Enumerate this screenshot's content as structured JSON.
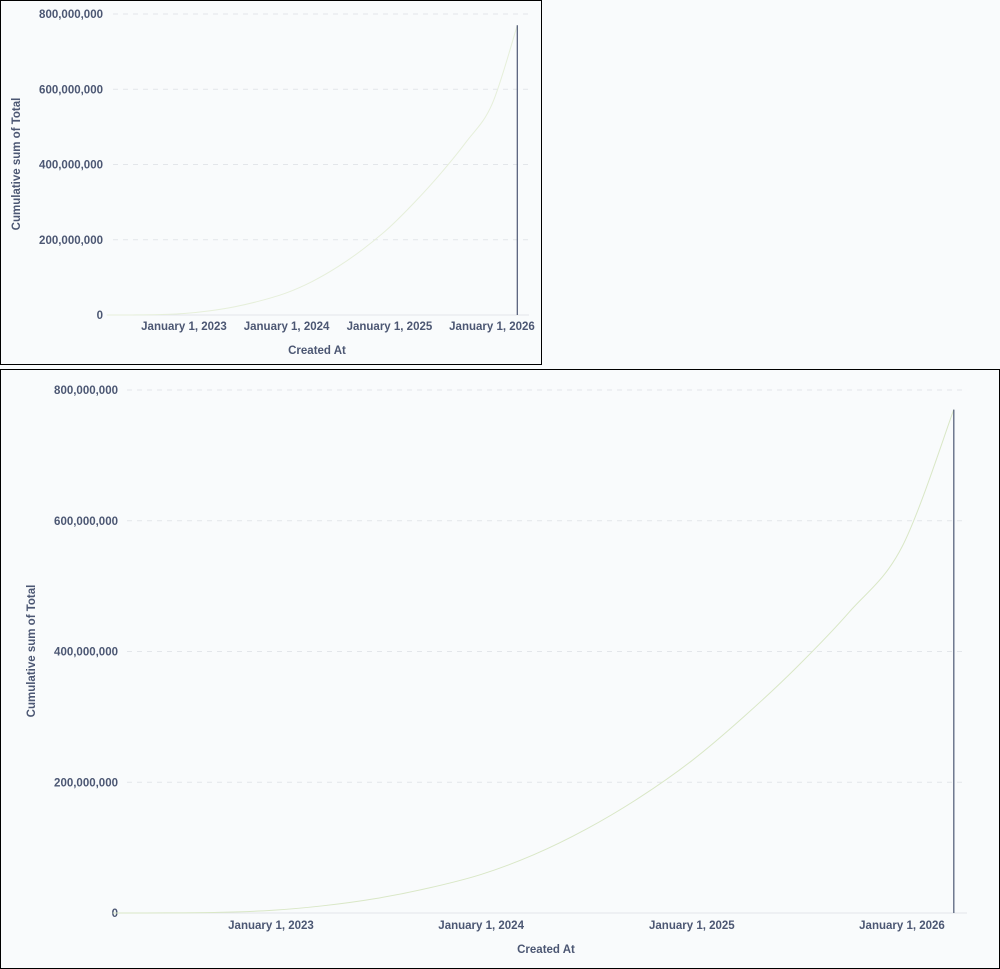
{
  "colors": {
    "background": "#f9fbfc",
    "text": "#4c5773",
    "grid": "#e3e6ea",
    "line": "#d9e7c6",
    "drop_line": "#4c5773"
  },
  "chart_data": [
    {
      "type": "line",
      "xlabel": "Created At",
      "ylabel": "Cumulative sum of Total",
      "ylim": [
        0,
        800000000
      ],
      "y_ticks": [
        0,
        200000000,
        400000000,
        600000000,
        800000000
      ],
      "y_tick_labels": [
        "0",
        "200,000,000",
        "400,000,000",
        "600,000,000",
        "800,000,000"
      ],
      "x_tick_labels": [
        "January 1, 2023",
        "January 1, 2024",
        "January 1, 2025",
        "January 1, 2026"
      ],
      "x": [
        "2022-04-01",
        "2022-07-01",
        "2022-10-01",
        "2023-01-01",
        "2023-04-01",
        "2023-07-01",
        "2023-10-01",
        "2024-01-01",
        "2024-04-01",
        "2024-07-01",
        "2024-10-01",
        "2025-01-01",
        "2025-04-01",
        "2025-07-01",
        "2025-10-01",
        "2026-01-01",
        "2026-04-01"
      ],
      "values": [
        0,
        150000,
        1000000,
        4000000,
        11000000,
        22000000,
        38000000,
        59000000,
        89000000,
        128000000,
        176000000,
        233000000,
        300000000,
        375000000,
        460000000,
        560000000,
        770000000
      ],
      "grid": true,
      "legend": "none"
    },
    {
      "type": "line",
      "xlabel": "Created At",
      "ylabel": "Cumulative sum of Total",
      "ylim": [
        0,
        800000000
      ],
      "y_ticks": [
        0,
        200000000,
        400000000,
        600000000,
        800000000
      ],
      "y_tick_labels": [
        "0",
        "200,000,000",
        "400,000,000",
        "600,000,000",
        "800,000,000"
      ],
      "x_tick_labels": [
        "January 1, 2023",
        "January 1, 2024",
        "January 1, 2025",
        "January 1, 2026"
      ],
      "x": [
        "2022-04-01",
        "2022-07-01",
        "2022-10-01",
        "2023-01-01",
        "2023-04-01",
        "2023-07-01",
        "2023-10-01",
        "2024-01-01",
        "2024-04-01",
        "2024-07-01",
        "2024-10-01",
        "2025-01-01",
        "2025-04-01",
        "2025-07-01",
        "2025-10-01",
        "2026-01-01",
        "2026-04-01"
      ],
      "values": [
        0,
        150000,
        1000000,
        4000000,
        11000000,
        22000000,
        38000000,
        59000000,
        89000000,
        128000000,
        176000000,
        233000000,
        300000000,
        375000000,
        460000000,
        560000000,
        770000000
      ],
      "grid": true,
      "legend": "none"
    }
  ]
}
